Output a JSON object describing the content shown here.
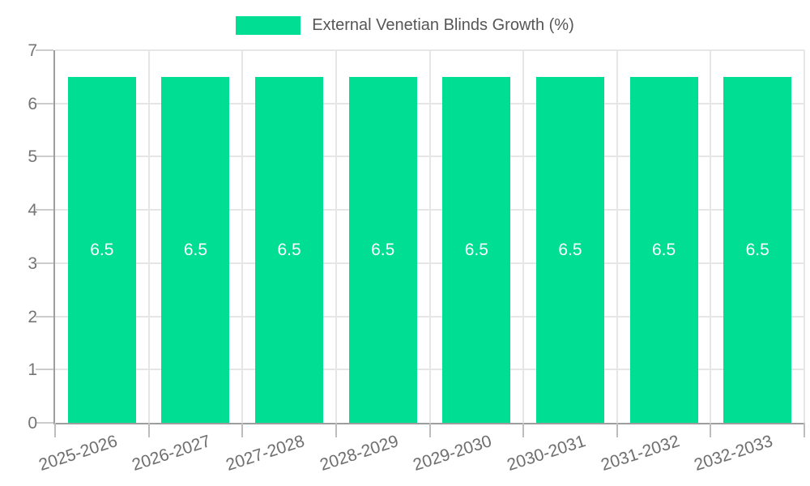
{
  "legend": {
    "label": "External Venetian Blinds Growth (%)"
  },
  "chart_data": {
    "type": "bar",
    "categories": [
      "2025-2026",
      "2026-2027",
      "2027-2028",
      "2028-2029",
      "2029-2030",
      "2030-2031",
      "2031-2032",
      "2032-2033"
    ],
    "values": [
      6.5,
      6.5,
      6.5,
      6.5,
      6.5,
      6.5,
      6.5,
      6.5
    ],
    "value_labels": [
      "6.5",
      "6.5",
      "6.5",
      "6.5",
      "6.5",
      "6.5",
      "6.5",
      "6.5"
    ],
    "title": "External Venetian Blinds Growth (%)",
    "xlabel": "",
    "ylabel": "",
    "ylim": [
      0,
      7
    ],
    "yticks": [
      0,
      1,
      2,
      3,
      4,
      5,
      6,
      7
    ],
    "grid": true,
    "legend_position": "top",
    "x_label_rotation_deg": -18,
    "colors": {
      "bar": "#00DE94",
      "value_label": "#FFFFFF",
      "axis": "#9E9E9E",
      "gridline": "#E6E6E6",
      "tick_text": "#757575",
      "legend_text": "#565656"
    }
  }
}
